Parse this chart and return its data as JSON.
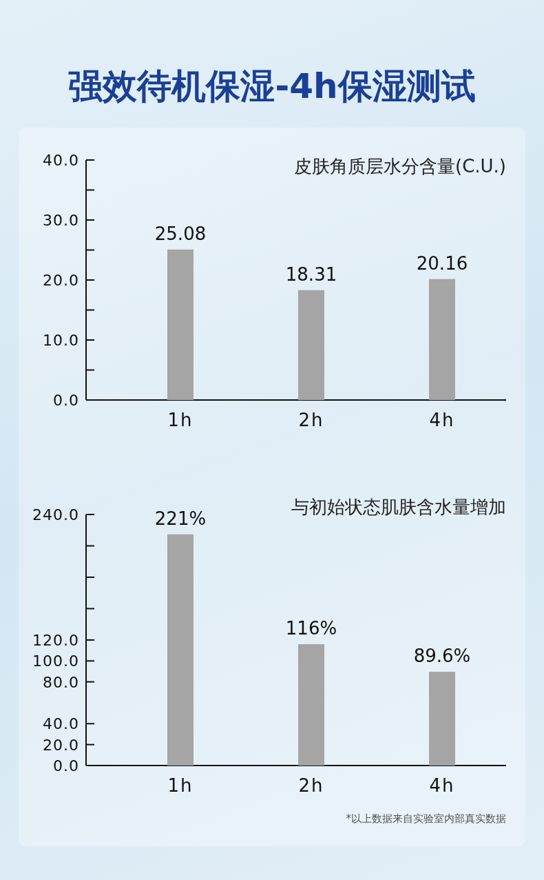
{
  "chart_data": [
    {
      "type": "bar",
      "title": "强效待机保湿-4h保湿测试",
      "subtitle": "皮肤角质层水分含量(C.U.)",
      "categories": [
        "1h",
        "2h",
        "4h"
      ],
      "values": [
        25.08,
        18.31,
        20.16
      ],
      "color": "#a5a5a5",
      "ylim": [
        0,
        40
      ],
      "yticks": [
        {
          "value": 0,
          "label": "0.0"
        },
        {
          "value": 5,
          "label": null
        },
        {
          "value": 10,
          "label": "10.0"
        },
        {
          "value": 15,
          "label": null
        },
        {
          "value": 20,
          "label": "20.0"
        },
        {
          "value": 25,
          "label": null
        },
        {
          "value": 30,
          "label": "30.0"
        },
        {
          "value": 35,
          "label": null
        },
        {
          "value": 40,
          "label": "40.0"
        }
      ],
      "data_labels": true
    },
    {
      "type": "bar",
      "title": "与初始状态肌肤含水量增加",
      "categories": [
        "1h",
        "2h",
        "4h"
      ],
      "values": [
        221,
        116,
        89.6
      ],
      "value_labels": [
        "221%",
        "116%",
        "89.6%"
      ],
      "color": "#a5a5a5",
      "ylim": [
        0,
        240
      ],
      "yticks": [
        {
          "value": 0,
          "label": "0.0"
        },
        {
          "value": 20,
          "label": "20.0"
        },
        {
          "value": 40,
          "label": "40.0"
        },
        {
          "value": 80,
          "label": "80.0"
        },
        {
          "value": 100,
          "label": "100.0"
        },
        {
          "value": 120,
          "label": "120.0"
        },
        {
          "value": 150,
          "label": null
        },
        {
          "value": 180,
          "label": null
        },
        {
          "value": 210,
          "label": null
        },
        {
          "value": 240,
          "label": "240.0"
        }
      ],
      "annotations": [
        "*以上数据来自实验室内部真实数据"
      ]
    }
  ]
}
